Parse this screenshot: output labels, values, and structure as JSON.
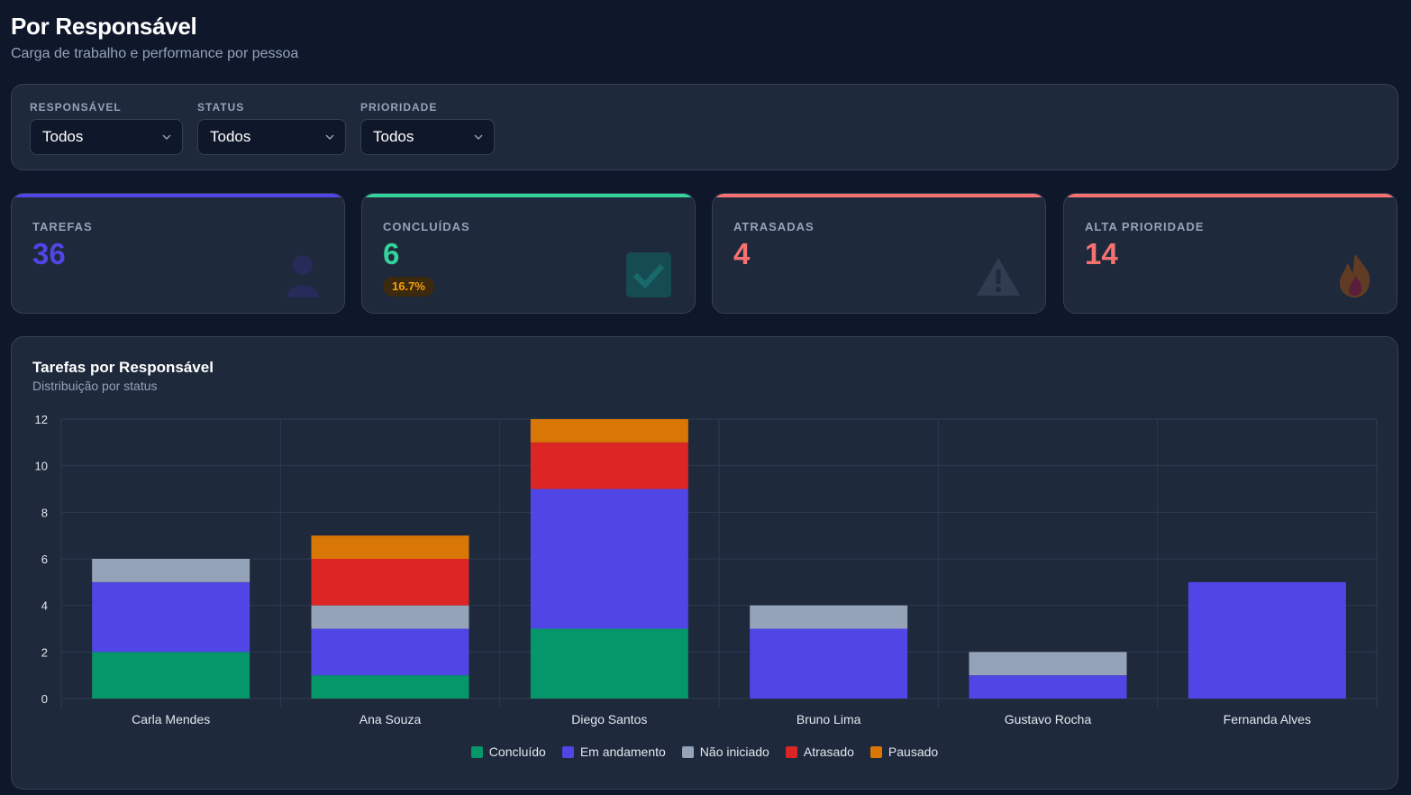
{
  "header": {
    "title": "Por Responsável",
    "subtitle": "Carga de trabalho e performance por pessoa"
  },
  "filters": [
    {
      "label": "RESPONSÁVEL",
      "value": "Todos"
    },
    {
      "label": "STATUS",
      "value": "Todos"
    },
    {
      "label": "PRIORIDADE",
      "value": "Todos"
    }
  ],
  "kpis": [
    {
      "label": "TAREFAS",
      "value": "36",
      "color": "#4f46e5",
      "icon": "user-icon"
    },
    {
      "label": "CONCLUÍDAS",
      "value": "6",
      "badge": "16.7%",
      "color": "#34d399",
      "icon": "check-icon"
    },
    {
      "label": "ATRASADAS",
      "value": "4",
      "color": "#f87171",
      "icon": "warning-icon"
    },
    {
      "label": "ALTA PRIORIDADE",
      "value": "14",
      "color": "#f87171",
      "icon": "fire-icon"
    }
  ],
  "chart": {
    "title": "Tarefas por Responsável",
    "subtitle": "Distribuição por status"
  },
  "chart_data": {
    "type": "bar",
    "stacked": true,
    "categories": [
      "Carla Mendes",
      "Ana Souza",
      "Diego Santos",
      "Bruno Lima",
      "Gustavo Rocha",
      "Fernanda Alves"
    ],
    "series": [
      {
        "name": "Concluído",
        "color": "#059669",
        "values": [
          2,
          1,
          3,
          0,
          0,
          0
        ]
      },
      {
        "name": "Em andamento",
        "color": "#4f46e5",
        "values": [
          3,
          2,
          6,
          3,
          1,
          5
        ]
      },
      {
        "name": "Não iniciado",
        "color": "#94a3b8",
        "values": [
          1,
          1,
          0,
          1,
          1,
          0
        ]
      },
      {
        "name": "Atrasado",
        "color": "#dc2626",
        "values": [
          0,
          2,
          2,
          0,
          0,
          0
        ]
      },
      {
        "name": "Pausado",
        "color": "#d97706",
        "values": [
          0,
          1,
          1,
          0,
          0,
          0
        ]
      }
    ],
    "ylim": [
      0,
      12
    ],
    "yticks": [
      0,
      2,
      4,
      6,
      8,
      10,
      12
    ],
    "grid": true,
    "legend": "bottom"
  }
}
